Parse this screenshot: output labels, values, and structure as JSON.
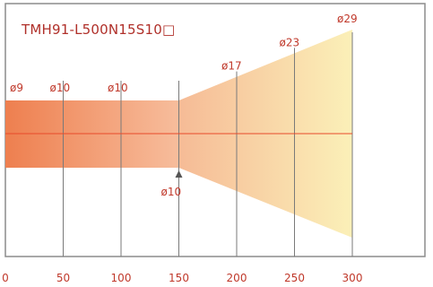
{
  "title": "TMH91-L500N15S10□",
  "colors": {
    "accent": "#c0392b",
    "frame": "#8c8c8c",
    "grid": "#7a7a7a",
    "centerline": "#e84a2a",
    "left_fill_start": "#ee7f4f",
    "left_fill_end": "#f7bd9c",
    "taper_fill_start": "#f6bb96",
    "taper_fill_end": "#fbf0b8"
  },
  "chart_data": {
    "type": "line",
    "x_ticks": [
      0,
      50,
      100,
      150,
      200,
      250,
      300
    ],
    "xlim": [
      0,
      300
    ],
    "body": {
      "x_start": 0,
      "x_end": 150,
      "diameter_top_labels": [
        {
          "x": 0,
          "label": "ø9"
        },
        {
          "x": 50,
          "label": "ø10"
        },
        {
          "x": 100,
          "label": "ø10"
        }
      ]
    },
    "taper": {
      "x_start": 150,
      "x_end": 300,
      "diameter_labels": [
        {
          "x": 200,
          "label": "ø17"
        },
        {
          "x": 250,
          "label": "ø23"
        },
        {
          "x": 300,
          "label": "ø29"
        }
      ]
    },
    "bottom_annotation": {
      "x": 150,
      "label": "ø10"
    }
  }
}
